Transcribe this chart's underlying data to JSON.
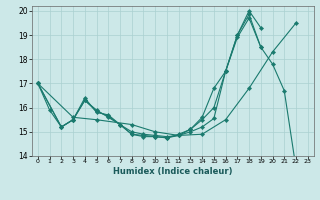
{
  "xlabel": "Humidex (Indice chaleur)",
  "bg_color": "#cce8e8",
  "line_color": "#1a7a6e",
  "grid_color": "#aad0d0",
  "xlim": [
    -0.5,
    23.5
  ],
  "ylim": [
    14,
    20.2
  ],
  "yticks": [
    14,
    15,
    16,
    17,
    18,
    19,
    20
  ],
  "xticks": [
    0,
    1,
    2,
    3,
    4,
    5,
    6,
    7,
    8,
    9,
    10,
    11,
    12,
    13,
    14,
    15,
    16,
    17,
    18,
    19,
    20,
    21,
    22,
    23
  ],
  "series": [
    {
      "x": [
        0,
        1,
        2,
        3,
        4,
        5,
        6,
        7,
        8,
        9,
        10,
        11,
        12,
        13,
        14,
        15,
        16,
        17,
        18,
        19,
        20,
        21,
        22
      ],
      "y": [
        17.0,
        15.9,
        15.2,
        15.5,
        16.4,
        15.8,
        15.7,
        15.3,
        14.9,
        14.8,
        14.8,
        14.75,
        14.85,
        15.0,
        15.2,
        15.55,
        17.5,
        19.0,
        19.85,
        18.5,
        17.8,
        16.7,
        13.5
      ]
    },
    {
      "x": [
        0,
        3,
        5,
        8,
        10,
        12,
        14,
        16,
        18,
        20,
        22
      ],
      "y": [
        17.0,
        15.6,
        15.5,
        15.3,
        15.0,
        14.85,
        14.9,
        15.5,
        16.8,
        18.3,
        19.5
      ]
    },
    {
      "x": [
        0,
        2,
        3,
        4,
        5,
        6,
        7,
        8,
        9,
        10,
        11,
        12,
        13,
        14,
        15,
        16,
        17,
        18,
        19
      ],
      "y": [
        17.0,
        15.2,
        15.5,
        16.3,
        15.85,
        15.65,
        15.3,
        14.9,
        14.85,
        14.8,
        14.75,
        14.9,
        15.1,
        15.5,
        16.0,
        17.5,
        19.0,
        20.0,
        19.3
      ]
    },
    {
      "x": [
        0,
        2,
        3,
        4,
        5,
        6,
        7,
        8,
        9,
        10,
        11,
        12,
        13,
        14,
        15,
        16,
        17,
        18,
        19
      ],
      "y": [
        17.0,
        15.2,
        15.5,
        16.3,
        15.9,
        15.6,
        15.3,
        15.0,
        14.9,
        14.85,
        14.8,
        14.85,
        15.1,
        15.6,
        16.8,
        17.5,
        18.9,
        19.7,
        18.5
      ]
    }
  ]
}
